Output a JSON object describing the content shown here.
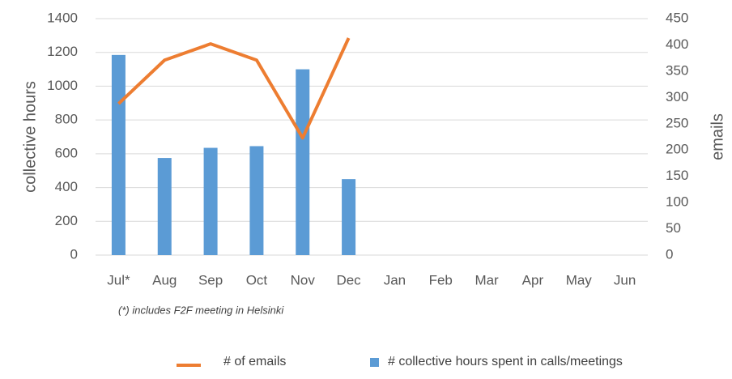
{
  "chart_data": {
    "type": "combo",
    "categories": [
      "Jul*",
      "Aug",
      "Sep",
      "Oct",
      "Nov",
      "Dec",
      "Jan",
      "Feb",
      "Mar",
      "Apr",
      "May",
      "Jun"
    ],
    "series": [
      {
        "name": "# of emails",
        "type": "line",
        "axis": "y2",
        "color": "#ed7d31",
        "values": [
          288,
          371,
          402,
          371,
          223,
          413,
          null,
          null,
          null,
          null,
          null,
          null
        ]
      },
      {
        "name": "# collective hours spent in calls/meetings",
        "type": "bar",
        "axis": "y",
        "color": "#5b9bd5",
        "values": [
          1185,
          575,
          635,
          645,
          1100,
          450,
          null,
          null,
          null,
          null,
          null,
          null
        ]
      }
    ],
    "ylabel": "collective hours",
    "y2label": "emails",
    "ylim": [
      0,
      1400
    ],
    "yticks": [
      0,
      200,
      400,
      600,
      800,
      1000,
      1200,
      1400
    ],
    "y2lim": [
      0,
      450
    ],
    "y2ticks": [
      0,
      50,
      100,
      150,
      200,
      250,
      300,
      350,
      400,
      450
    ],
    "grid": true,
    "legend": "bottom",
    "annotation": "(*) includes F2F meeting in Helsinki"
  }
}
